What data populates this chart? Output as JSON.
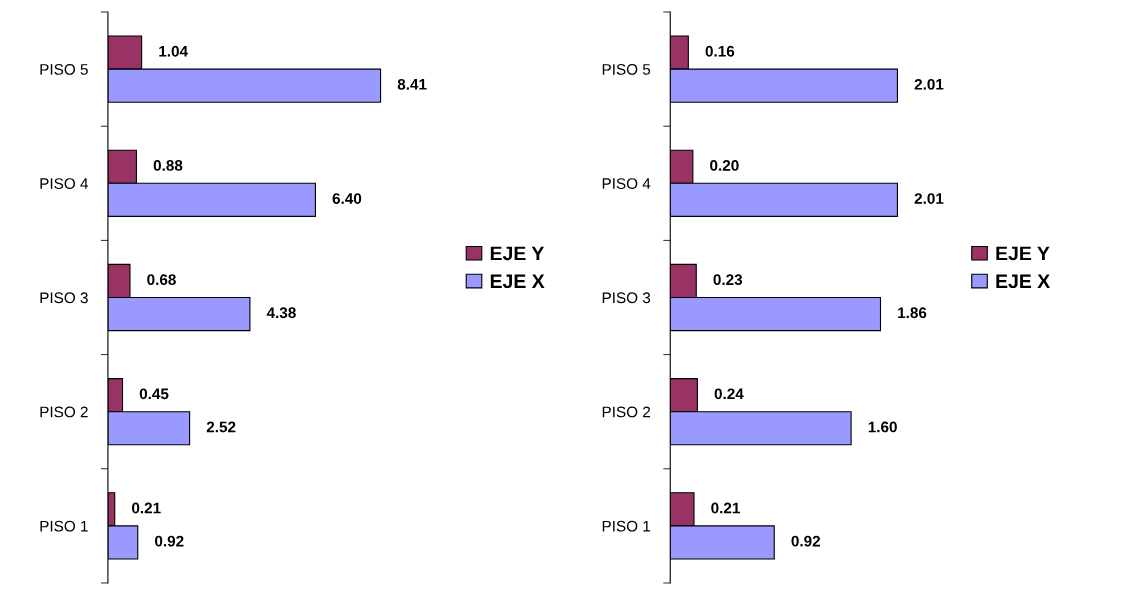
{
  "chart_data": [
    {
      "type": "bar",
      "orientation": "horizontal",
      "categories": [
        "PISO 5",
        "PISO 4",
        "PISO 3",
        "PISO 2",
        "PISO 1"
      ],
      "legend": "right",
      "grid": false,
      "series": [
        {
          "name": "EJE Y",
          "color": "#993366",
          "values": [
            1.04,
            0.88,
            0.68,
            0.45,
            0.21
          ],
          "value_labels": [
            "1.04",
            "0.88",
            "0.68",
            "0.45",
            "0.21"
          ]
        },
        {
          "name": "EJE X",
          "color": "#9999ff",
          "values": [
            8.41,
            6.4,
            4.38,
            2.52,
            0.92
          ],
          "value_labels": [
            "8.41",
            "6.40",
            "4.38",
            "2.52",
            "0.92"
          ]
        }
      ]
    },
    {
      "type": "bar",
      "orientation": "horizontal",
      "categories": [
        "PISO 5",
        "PISO 4",
        "PISO 3",
        "PISO 2",
        "PISO 1"
      ],
      "legend": "right",
      "grid": false,
      "series": [
        {
          "name": "EJE Y",
          "color": "#993366",
          "values": [
            0.16,
            0.2,
            0.23,
            0.24,
            0.21
          ],
          "value_labels": [
            "0.16",
            "0.20",
            "0.23",
            "0.24",
            "0.21"
          ]
        },
        {
          "name": "EJE X",
          "color": "#9999ff",
          "values": [
            2.01,
            2.01,
            1.86,
            1.6,
            0.92
          ],
          "value_labels": [
            "2.01",
            "2.01",
            "1.86",
            "1.60",
            "0.92"
          ]
        }
      ]
    }
  ]
}
